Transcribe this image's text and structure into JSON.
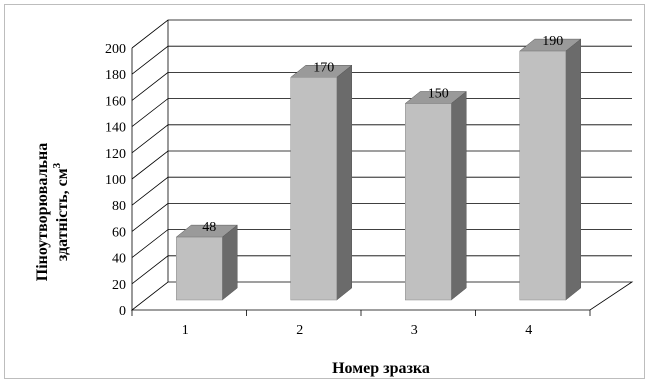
{
  "chart_data": {
    "type": "bar",
    "categories": [
      "1",
      "2",
      "3",
      "4"
    ],
    "values": [
      48,
      170,
      150,
      190
    ],
    "data_labels": [
      "48",
      "170",
      "150",
      "190"
    ],
    "yticks": [
      "0",
      "20",
      "40",
      "60",
      "80",
      "100",
      "120",
      "140",
      "160",
      "180",
      "200"
    ],
    "ylim": [
      0,
      200
    ],
    "xlabel": "Номер зразка",
    "ylabel_line1": "Піноутворювальна",
    "ylabel_line2": "здатність, см",
    "ylabel_superscript": "3",
    "grid": true,
    "legend": "none",
    "colors": {
      "bar_front": "#c0c0c0",
      "bar_top": "#9a9a9a",
      "bar_side": "#6b6b6b",
      "grid": "#000000",
      "floor": "#000000"
    }
  }
}
